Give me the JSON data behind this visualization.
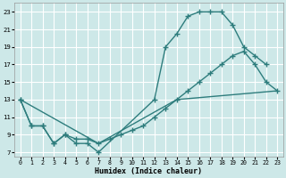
{
  "xlabel": "Humidex (Indice chaleur)",
  "bg_color": "#cde8e8",
  "grid_color": "#ffffff",
  "line_color": "#2e7d7d",
  "xlim": [
    -0.5,
    23.5
  ],
  "ylim": [
    6.5,
    24.0
  ],
  "xticks": [
    0,
    1,
    2,
    3,
    4,
    5,
    6,
    7,
    8,
    9,
    10,
    11,
    12,
    13,
    14,
    15,
    16,
    17,
    18,
    19,
    20,
    21,
    22,
    23
  ],
  "yticks": [
    7,
    9,
    11,
    13,
    15,
    17,
    19,
    21,
    23
  ],
  "s1x": [
    0,
    1,
    2,
    3,
    4,
    5,
    6,
    7,
    12,
    13,
    14,
    15,
    16,
    17,
    18,
    19,
    20,
    21,
    22
  ],
  "s1y": [
    13,
    10,
    10,
    8,
    9,
    8,
    8,
    7,
    13,
    19,
    20.5,
    22.5,
    23,
    23,
    23,
    21.5,
    19,
    18,
    17
  ],
  "s2x": [
    0,
    1,
    2,
    3,
    4,
    5,
    6,
    7,
    8,
    9,
    10,
    11,
    12,
    13,
    14,
    15,
    16,
    17,
    18,
    19,
    20,
    21,
    22,
    23
  ],
  "s2y": [
    13,
    10,
    10,
    8,
    9,
    8.5,
    8.5,
    8,
    8.5,
    9,
    9.5,
    10,
    11,
    12,
    13,
    14,
    15,
    16,
    17,
    18,
    18.5,
    17,
    15,
    14
  ],
  "s3x": [
    0,
    7,
    14,
    23
  ],
  "s3y": [
    13,
    8,
    13,
    14
  ]
}
